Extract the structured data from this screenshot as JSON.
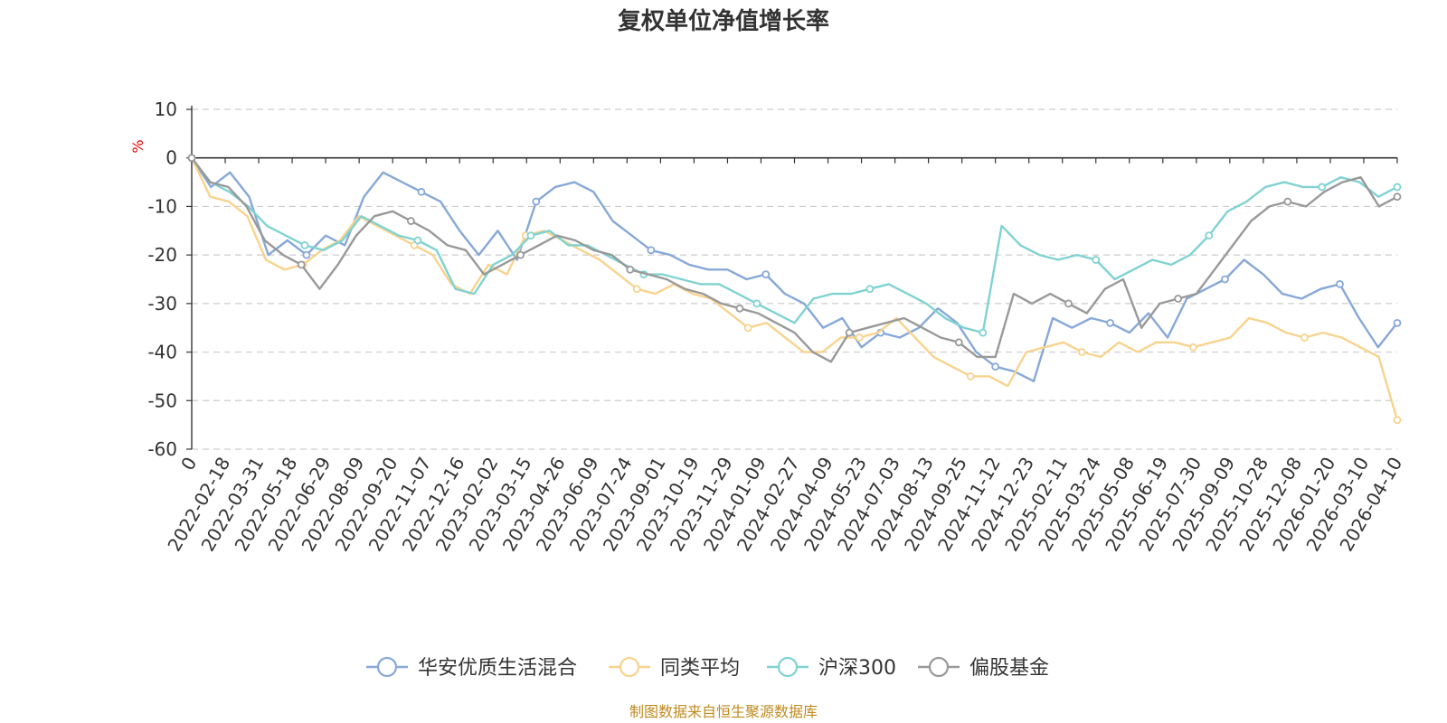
{
  "chart_data": {
    "type": "line",
    "title": "复权单位净值增长率",
    "ylabel": "%",
    "ylim": [
      -60,
      10
    ],
    "yticks": [
      10,
      0,
      -10,
      -20,
      -30,
      -40,
      -50,
      -60
    ],
    "grid": true,
    "legend_position": "bottom",
    "x_tick_labels": [
      "0",
      "2022-02-18",
      "2022-03-31",
      "2022-05-18",
      "2022-06-29",
      "2022-08-09",
      "2022-09-20",
      "2022-11-07",
      "2022-12-16",
      "2023-02-02",
      "2023-03-15",
      "2023-04-26",
      "2023-06-09",
      "2023-07-24",
      "2023-09-01",
      "2023-10-19",
      "2023-11-29",
      "2024-01-09",
      "2024-02-27",
      "2024-04-09",
      "2024-05-23",
      "2024-07-03",
      "2024-08-13",
      "2024-09-25",
      "2024-11-12",
      "2024-12-23",
      "2025-02-11",
      "2025-03-24",
      "2025-05-08",
      "2025-06-19",
      "2025-07-30",
      "2025-09-09",
      "2025-10-28",
      "2025-12-08",
      "2026-01-20",
      "2026-03-10",
      "2026-04-10"
    ],
    "series": [
      {
        "name": "华安优质生活混合",
        "color": "#87a8d8",
        "values": [
          0,
          -6,
          -3,
          -8,
          -20,
          -17,
          -20,
          -16,
          -18,
          -8,
          -3,
          -5,
          -7,
          -9,
          -15,
          -20,
          -15,
          -21,
          -9,
          -6,
          -5,
          -7,
          -13,
          -16,
          -19,
          -20,
          -22,
          -23,
          -23,
          -25,
          -24,
          -28,
          -30,
          -35,
          -33,
          -39,
          -36,
          -37,
          -35,
          -31,
          -34,
          -40,
          -43,
          -44,
          -46,
          -33,
          -35,
          -33,
          -34,
          -36,
          -32,
          -37,
          -29,
          -27,
          -25,
          -21,
          -24,
          -28,
          -29,
          -27,
          -26,
          -33,
          -39,
          -34
        ]
      },
      {
        "name": "同类平均",
        "color": "#f8d38e",
        "values": [
          0,
          -8,
          -9,
          -12,
          -21,
          -23,
          -22,
          -19,
          -17,
          -12,
          -14,
          -16,
          -18,
          -20,
          -26,
          -28,
          -22,
          -24,
          -16,
          -15,
          -17,
          -19,
          -21,
          -24,
          -27,
          -28,
          -26,
          -28,
          -29,
          -32,
          -35,
          -34,
          -37,
          -40,
          -40,
          -37,
          -37,
          -36,
          -33,
          -37,
          -41,
          -43,
          -45,
          -45,
          -47,
          -40,
          -39,
          -38,
          -40,
          -41,
          -38,
          -40,
          -38,
          -38,
          -39,
          -38,
          -37,
          -33,
          -34,
          -36,
          -37,
          -36,
          -37,
          -39,
          -41,
          -54
        ]
      },
      {
        "name": "沪深300",
        "color": "#80d2d2",
        "values": [
          0,
          -5,
          -7,
          -10,
          -14,
          -16,
          -18,
          -19,
          -17,
          -12,
          -14,
          -16,
          -17,
          -19,
          -27,
          -28,
          -22,
          -20,
          -16,
          -15,
          -18,
          -18,
          -20,
          -22,
          -24,
          -24,
          -25,
          -26,
          -26,
          -28,
          -30,
          -32,
          -34,
          -29,
          -28,
          -28,
          -27,
          -26,
          -28,
          -30,
          -33,
          -35,
          -36,
          -14,
          -18,
          -20,
          -21,
          -20,
          -21,
          -25,
          -23,
          -21,
          -22,
          -20,
          -16,
          -11,
          -9,
          -6,
          -5,
          -6,
          -6,
          -4,
          -5,
          -8,
          -6
        ]
      },
      {
        "name": "偏股基金",
        "color": "#999999",
        "values": [
          0,
          -5,
          -6,
          -10,
          -17,
          -20,
          -22,
          -27,
          -22,
          -16,
          -12,
          -11,
          -13,
          -15,
          -18,
          -19,
          -24,
          -22,
          -20,
          -18,
          -16,
          -17,
          -19,
          -20,
          -23,
          -24,
          -25,
          -27,
          -28,
          -30,
          -31,
          -32,
          -34,
          -36,
          -40,
          -42,
          -36,
          -35,
          -34,
          -33,
          -35,
          -37,
          -38,
          -41,
          -41,
          -28,
          -30,
          -28,
          -30,
          -32,
          -27,
          -25,
          -35,
          -30,
          -29,
          -28,
          -23,
          -18,
          -13,
          -10,
          -9,
          -10,
          -7,
          -5,
          -4,
          -10,
          -8
        ]
      }
    ]
  },
  "source_note": "制图数据来自恒生聚源数据库"
}
